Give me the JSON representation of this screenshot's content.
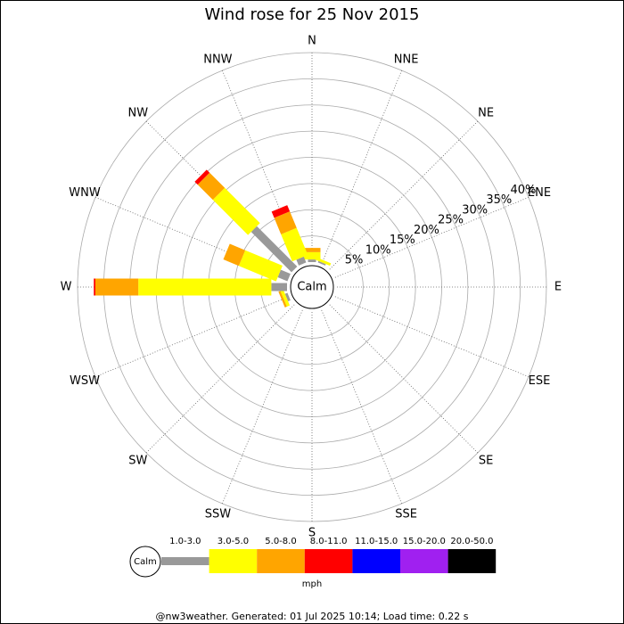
{
  "chart_data": {
    "type": "windrose",
    "title": "Wind rose for 25 Nov 2015",
    "categories": [
      "N",
      "NNE",
      "NE",
      "ENE",
      "E",
      "ESE",
      "SE",
      "SSE",
      "S",
      "SSW",
      "SW",
      "WSW",
      "W",
      "WNW",
      "NW",
      "NNW"
    ],
    "series": [
      {
        "name": "1.0-3.0",
        "color": "#999999",
        "values": [
          0.5,
          0.3,
          0,
          0,
          0,
          0,
          0,
          0,
          0,
          0,
          0,
          0.5,
          3,
          2,
          10.9,
          1.2
        ]
      },
      {
        "name": "3.0-5.0",
        "color": "#ffff00",
        "values": [
          1.4,
          0.5,
          0,
          0,
          0,
          0,
          0,
          0,
          0,
          0,
          0,
          0.6,
          25.4,
          7.7,
          9.5,
          5.6
        ]
      },
      {
        "name": "5.0-8.0",
        "color": "#ffa500",
        "values": [
          0.8,
          0,
          0,
          0,
          0,
          0,
          0,
          0,
          0,
          0,
          0,
          0.4,
          8.2,
          3.2,
          4.1,
          3.4
        ]
      },
      {
        "name": "8.0-11.0",
        "color": "#ff0000",
        "values": [
          0,
          0,
          0,
          0,
          0,
          0,
          0,
          0,
          0,
          0,
          0,
          0,
          0.3,
          0,
          0.8,
          1.3
        ]
      },
      {
        "name": "11.0-15.0",
        "color": "#0000ff",
        "values": [
          0,
          0,
          0,
          0,
          0,
          0,
          0,
          0,
          0,
          0,
          0,
          0,
          0,
          0,
          0,
          0
        ]
      },
      {
        "name": "15.0-20.0",
        "color": "#a020f0",
        "values": [
          0,
          0,
          0,
          0,
          0,
          0,
          0,
          0,
          0,
          0,
          0,
          0,
          0,
          0,
          0,
          0
        ]
      },
      {
        "name": "20.0-50.0",
        "color": "#000000",
        "values": [
          0,
          0,
          0,
          0,
          0,
          0,
          0,
          0,
          0,
          0,
          0,
          0,
          0,
          0,
          0,
          0
        ]
      }
    ],
    "rlim": [
      0,
      40
    ],
    "rticks": [
      {
        "value": 5,
        "label": "5%"
      },
      {
        "value": 10,
        "label": "10%"
      },
      {
        "value": 15,
        "label": "15%"
      },
      {
        "value": 20,
        "label": "20%"
      },
      {
        "value": 25,
        "label": "25%"
      },
      {
        "value": 30,
        "label": "30%"
      },
      {
        "value": 35,
        "label": "35%"
      },
      {
        "value": 40,
        "label": "40%"
      }
    ],
    "calm_label": "Calm",
    "legend_unit": "mph",
    "footer": "@nw3weather. Generated: 01 Jul 2025 10:14; Load time: 0.22 s"
  }
}
